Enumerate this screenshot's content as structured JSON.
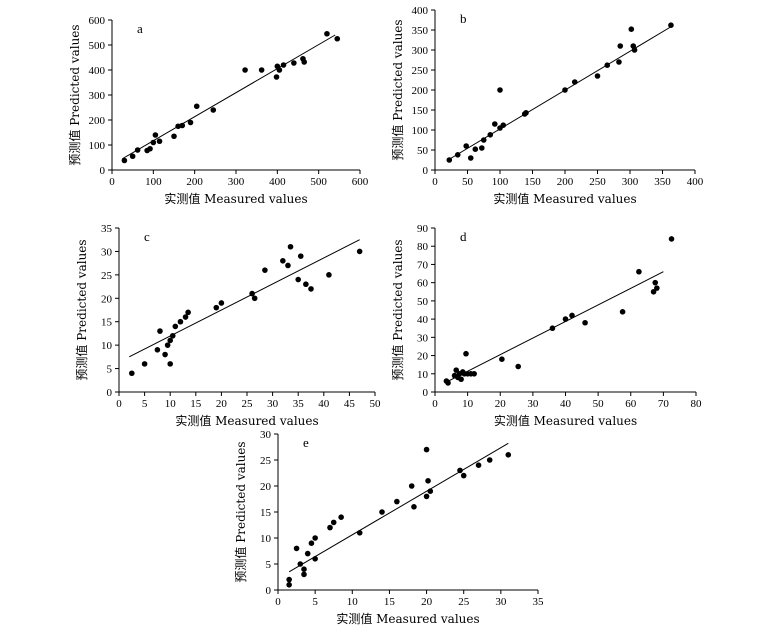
{
  "chart_data": [
    {
      "type": "scatter",
      "letter": "a",
      "xlabel": "实测值 Measured values",
      "ylabel": "预测值 Predicted values",
      "xlim": [
        0,
        600
      ],
      "ylim": [
        0,
        600
      ],
      "xticks": [
        0,
        100,
        200,
        300,
        400,
        500,
        600
      ],
      "yticks": [
        0,
        100,
        200,
        300,
        400,
        500,
        600
      ],
      "fit_line": [
        [
          25,
          45
        ],
        [
          540,
          540
        ]
      ],
      "points": [
        [
          30,
          38
        ],
        [
          50,
          55
        ],
        [
          62,
          80
        ],
        [
          85,
          78
        ],
        [
          92,
          85
        ],
        [
          100,
          110
        ],
        [
          105,
          140
        ],
        [
          115,
          115
        ],
        [
          150,
          135
        ],
        [
          160,
          175
        ],
        [
          170,
          178
        ],
        [
          190,
          190
        ],
        [
          205,
          255
        ],
        [
          245,
          240
        ],
        [
          322,
          400
        ],
        [
          362,
          400
        ],
        [
          398,
          372
        ],
        [
          400,
          415
        ],
        [
          405,
          400
        ],
        [
          415,
          420
        ],
        [
          440,
          428
        ],
        [
          462,
          445
        ],
        [
          465,
          432
        ],
        [
          520,
          545
        ],
        [
          545,
          525
        ]
      ]
    },
    {
      "type": "scatter",
      "letter": "b",
      "xlabel": "实测值 Measured values",
      "ylabel": "预测值 Predicted values",
      "xlim": [
        0,
        400
      ],
      "ylim": [
        0,
        400
      ],
      "xticks": [
        0,
        50,
        100,
        150,
        200,
        250,
        300,
        350,
        400
      ],
      "yticks": [
        0,
        50,
        100,
        150,
        200,
        250,
        300,
        350,
        400
      ],
      "fit_line": [
        [
          20,
          25
        ],
        [
          365,
          360
        ]
      ],
      "points": [
        [
          22,
          25
        ],
        [
          35,
          38
        ],
        [
          48,
          60
        ],
        [
          55,
          30
        ],
        [
          62,
          52
        ],
        [
          72,
          55
        ],
        [
          75,
          75
        ],
        [
          85,
          88
        ],
        [
          92,
          115
        ],
        [
          100,
          200
        ],
        [
          100,
          105
        ],
        [
          105,
          112
        ],
        [
          138,
          140
        ],
        [
          140,
          143
        ],
        [
          200,
          200
        ],
        [
          215,
          220
        ],
        [
          250,
          235
        ],
        [
          265,
          262
        ],
        [
          283,
          270
        ],
        [
          285,
          310
        ],
        [
          302,
          352
        ],
        [
          305,
          310
        ],
        [
          307,
          300
        ],
        [
          363,
          362
        ]
      ]
    },
    {
      "type": "scatter",
      "letter": "c",
      "xlabel": "实测值 Measured values",
      "ylabel": "预测值 Predicted values",
      "xlim": [
        0,
        50
      ],
      "ylim": [
        0,
        35
      ],
      "xticks": [
        0,
        5,
        10,
        15,
        20,
        25,
        30,
        35,
        40,
        45,
        50
      ],
      "yticks": [
        0,
        5,
        10,
        15,
        20,
        25,
        30,
        35
      ],
      "fit_line": [
        [
          2,
          7.5
        ],
        [
          47,
          32.5
        ]
      ],
      "points": [
        [
          2.5,
          4
        ],
        [
          5,
          6
        ],
        [
          7.5,
          9
        ],
        [
          8,
          13
        ],
        [
          9,
          8
        ],
        [
          9.5,
          10
        ],
        [
          10,
          6
        ],
        [
          10,
          11
        ],
        [
          10.5,
          12
        ],
        [
          11,
          14
        ],
        [
          12,
          15
        ],
        [
          13,
          16
        ],
        [
          13.5,
          17
        ],
        [
          19,
          18
        ],
        [
          20,
          19
        ],
        [
          26,
          21
        ],
        [
          26.5,
          20
        ],
        [
          28.5,
          26
        ],
        [
          32,
          28
        ],
        [
          33,
          27
        ],
        [
          33.5,
          31
        ],
        [
          35,
          24
        ],
        [
          35.5,
          29
        ],
        [
          36.5,
          23
        ],
        [
          37.5,
          22
        ],
        [
          41,
          25
        ],
        [
          47,
          30
        ]
      ]
    },
    {
      "type": "scatter",
      "letter": "d",
      "xlabel": "实测值 Measured values",
      "ylabel": "预测值 Predicted values",
      "xlim": [
        0,
        80
      ],
      "ylim": [
        0,
        90
      ],
      "xticks": [
        0,
        10,
        20,
        30,
        40,
        50,
        60,
        70,
        80
      ],
      "yticks": [
        0,
        10,
        20,
        30,
        40,
        50,
        60,
        70,
        80,
        90
      ],
      "fit_line": [
        [
          3,
          5
        ],
        [
          70,
          66
        ]
      ],
      "points": [
        [
          3.5,
          6
        ],
        [
          4,
          5
        ],
        [
          6,
          9
        ],
        [
          6.5,
          12
        ],
        [
          7,
          8
        ],
        [
          7.5,
          10
        ],
        [
          8,
          7
        ],
        [
          8.5,
          11
        ],
        [
          9,
          10
        ],
        [
          9.5,
          21
        ],
        [
          10,
          10
        ],
        [
          11,
          10
        ],
        [
          12,
          10
        ],
        [
          20.5,
          18
        ],
        [
          25.5,
          14
        ],
        [
          36,
          35
        ],
        [
          40,
          40
        ],
        [
          42,
          42
        ],
        [
          46,
          38
        ],
        [
          57.5,
          44
        ],
        [
          62.5,
          66
        ],
        [
          67,
          55
        ],
        [
          67.5,
          60
        ],
        [
          68,
          57
        ],
        [
          72.5,
          84
        ]
      ]
    },
    {
      "type": "scatter",
      "letter": "e",
      "xlabel": "实测值 Measured values",
      "ylabel": "预测值 Predicted values",
      "xlim": [
        0,
        35
      ],
      "ylim": [
        0,
        30
      ],
      "xticks": [
        0,
        5,
        10,
        15,
        20,
        25,
        30,
        35
      ],
      "yticks": [
        0,
        5,
        10,
        15,
        20,
        25,
        30
      ],
      "fit_line": [
        [
          1.5,
          3.5
        ],
        [
          31,
          28.2
        ]
      ],
      "points": [
        [
          1.5,
          2
        ],
        [
          1.5,
          1
        ],
        [
          2.5,
          8
        ],
        [
          3,
          5
        ],
        [
          3.5,
          4
        ],
        [
          3.5,
          3
        ],
        [
          4,
          7
        ],
        [
          4.5,
          9
        ],
        [
          5,
          10
        ],
        [
          5,
          6
        ],
        [
          7,
          12
        ],
        [
          7.5,
          13
        ],
        [
          8.5,
          14
        ],
        [
          11,
          11
        ],
        [
          14,
          15
        ],
        [
          16,
          17
        ],
        [
          18,
          20
        ],
        [
          18.3,
          16
        ],
        [
          20,
          27
        ],
        [
          20,
          18
        ],
        [
          20.2,
          21
        ],
        [
          20.5,
          19
        ],
        [
          24.5,
          23
        ],
        [
          25,
          22
        ],
        [
          27,
          24
        ],
        [
          28.5,
          25
        ],
        [
          31,
          26
        ]
      ]
    }
  ]
}
